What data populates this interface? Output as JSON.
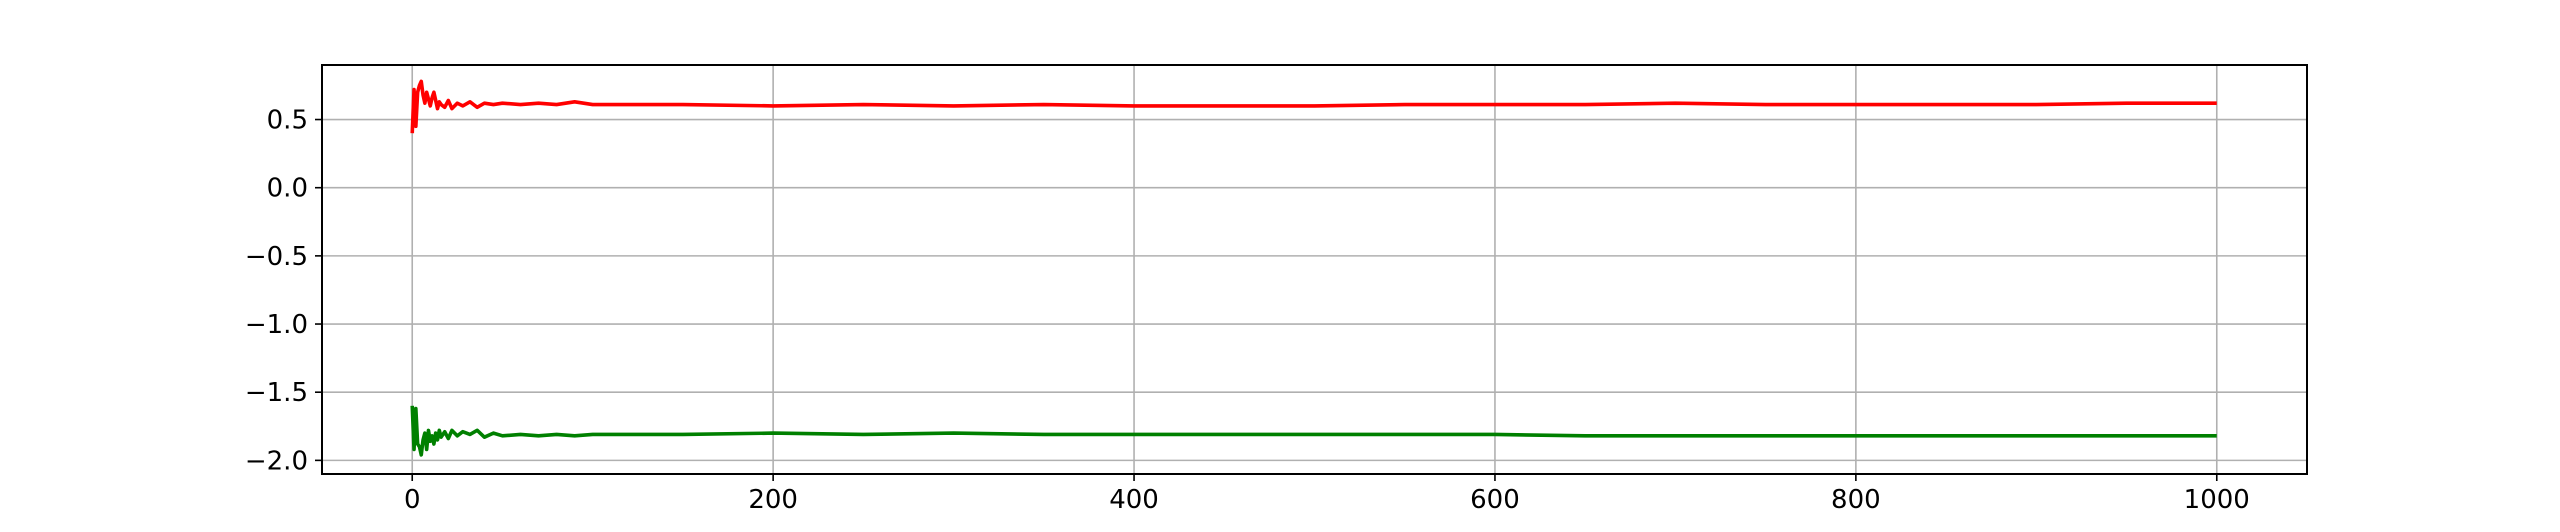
{
  "chart_data": {
    "type": "line",
    "title": "",
    "xlabel": "",
    "ylabel": "",
    "xlim": [
      -50,
      1050
    ],
    "ylim": [
      -2.1,
      0.9
    ],
    "grid": true,
    "legend": "none",
    "x_ticks": [
      0,
      200,
      400,
      600,
      800,
      1000
    ],
    "x_tick_labels": [
      "0",
      "200",
      "400",
      "600",
      "800",
      "1000"
    ],
    "y_ticks": [
      0.5,
      0.0,
      -0.5,
      -1.0,
      -1.5,
      -2.0
    ],
    "y_tick_labels": [
      "0.5",
      "0.0",
      "−0.5",
      "−1.0",
      "−1.5",
      "−2.0"
    ],
    "series": [
      {
        "color": "#ff0000",
        "x": [
          0,
          1,
          2,
          3,
          4,
          5,
          6,
          7,
          8,
          9,
          10,
          11,
          12,
          13,
          14,
          15,
          16,
          18,
          20,
          22,
          25,
          28,
          32,
          36,
          40,
          45,
          50,
          60,
          70,
          80,
          90,
          100,
          120,
          150,
          200,
          250,
          300,
          350,
          400,
          450,
          500,
          550,
          600,
          650,
          700,
          750,
          800,
          850,
          900,
          950,
          1000
        ],
        "y": [
          0.4,
          0.72,
          0.45,
          0.7,
          0.75,
          0.78,
          0.68,
          0.62,
          0.7,
          0.65,
          0.6,
          0.66,
          0.7,
          0.64,
          0.58,
          0.63,
          0.61,
          0.59,
          0.64,
          0.58,
          0.62,
          0.6,
          0.63,
          0.59,
          0.62,
          0.61,
          0.62,
          0.61,
          0.62,
          0.61,
          0.63,
          0.61,
          0.61,
          0.61,
          0.6,
          0.61,
          0.6,
          0.61,
          0.6,
          0.6,
          0.6,
          0.61,
          0.61,
          0.61,
          0.62,
          0.61,
          0.61,
          0.61,
          0.61,
          0.62,
          0.62
        ]
      },
      {
        "color": "#008000",
        "x": [
          0,
          1,
          2,
          3,
          4,
          5,
          6,
          7,
          8,
          9,
          10,
          11,
          12,
          13,
          14,
          15,
          16,
          18,
          20,
          22,
          25,
          28,
          32,
          36,
          40,
          45,
          50,
          60,
          70,
          80,
          90,
          100,
          120,
          150,
          200,
          250,
          300,
          350,
          400,
          450,
          500,
          550,
          600,
          650,
          700,
          750,
          800,
          850,
          900,
          950,
          1000
        ],
        "y": [
          -1.6,
          -1.92,
          -1.62,
          -1.88,
          -1.9,
          -1.96,
          -1.85,
          -1.8,
          -1.92,
          -1.78,
          -1.86,
          -1.82,
          -1.88,
          -1.8,
          -1.85,
          -1.78,
          -1.83,
          -1.79,
          -1.84,
          -1.78,
          -1.82,
          -1.79,
          -1.81,
          -1.78,
          -1.83,
          -1.8,
          -1.82,
          -1.81,
          -1.82,
          -1.81,
          -1.82,
          -1.81,
          -1.81,
          -1.81,
          -1.8,
          -1.81,
          -1.8,
          -1.81,
          -1.81,
          -1.81,
          -1.81,
          -1.81,
          -1.81,
          -1.82,
          -1.82,
          -1.82,
          -1.82,
          -1.82,
          -1.82,
          -1.82,
          -1.82
        ]
      }
    ]
  }
}
